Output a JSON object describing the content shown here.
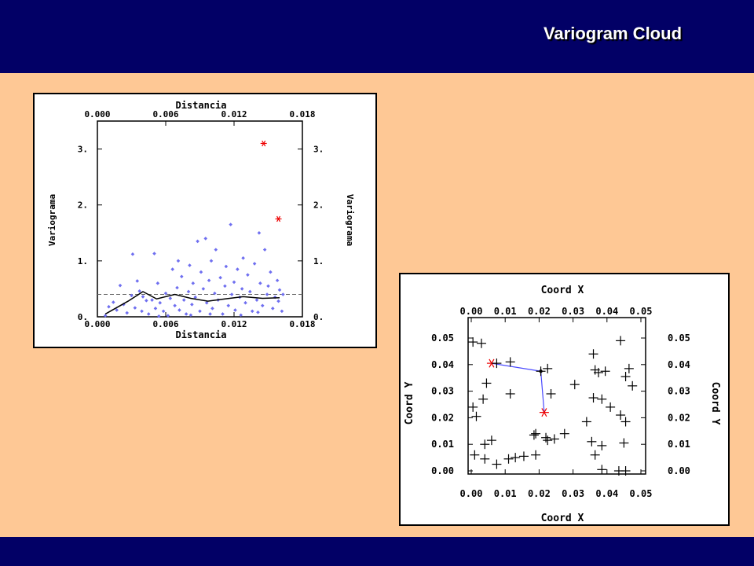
{
  "slide": {
    "title": "Variogram Cloud",
    "colors": {
      "background": "#fec895",
      "band": "#020066",
      "title_text": "#ffffff"
    }
  },
  "chart_data": [
    {
      "type": "scatter",
      "xlabel_top": "Distancia",
      "xlabel_bottom": "Distancia",
      "ylabel_left": "Variograma",
      "ylabel_right": "Variograma",
      "xlim": [
        0,
        0.018
      ],
      "ylim": [
        0,
        3.5
      ],
      "x_ticks": [
        0,
        0.006,
        0.012,
        0.018
      ],
      "x_tick_labels": [
        "0.000",
        "0.006",
        "0.012",
        "0.018"
      ],
      "y_ticks": [
        0,
        1,
        2,
        3
      ],
      "y_tick_labels": [
        "0.",
        "1.",
        "2.",
        "3."
      ],
      "sill": 0.4,
      "colors": {
        "points": "#6f6ff0",
        "outliers": "#ee0000",
        "line": "#000000",
        "sill": "#666666"
      },
      "points": [
        [
          0.0007,
          0.02
        ],
        [
          0.001,
          0.18
        ],
        [
          0.0014,
          0.26
        ],
        [
          0.0017,
          0.12
        ],
        [
          0.002,
          0.56
        ],
        [
          0.0023,
          0.22
        ],
        [
          0.0026,
          0.07
        ],
        [
          0.003,
          0.38
        ],
        [
          0.0031,
          1.12
        ],
        [
          0.0033,
          0.16
        ],
        [
          0.0035,
          0.64
        ],
        [
          0.0037,
          0.46
        ],
        [
          0.004,
          0.36
        ],
        [
          0.0043,
          0.29
        ],
        [
          0.0045,
          0.05
        ],
        [
          0.0048,
          0.3
        ],
        [
          0.005,
          1.13
        ],
        [
          0.0051,
          0.15
        ],
        [
          0.0053,
          0.6
        ],
        [
          0.0055,
          0.25
        ],
        [
          0.0058,
          0.1
        ],
        [
          0.006,
          0.42
        ],
        [
          0.0062,
          0.02
        ],
        [
          0.0064,
          0.33
        ],
        [
          0.0066,
          0.85
        ],
        [
          0.0068,
          0.2
        ],
        [
          0.007,
          0.52
        ],
        [
          0.0071,
          1.0
        ],
        [
          0.0072,
          0.12
        ],
        [
          0.0074,
          0.72
        ],
        [
          0.0076,
          0.3
        ],
        [
          0.0078,
          0.05
        ],
        [
          0.008,
          0.45
        ],
        [
          0.0081,
          0.92
        ],
        [
          0.0083,
          0.22
        ],
        [
          0.0084,
          0.6
        ],
        [
          0.0086,
          0.35
        ],
        [
          0.0088,
          1.35
        ],
        [
          0.009,
          0.1
        ],
        [
          0.0091,
          0.8
        ],
        [
          0.0093,
          0.5
        ],
        [
          0.0095,
          1.4
        ],
        [
          0.0096,
          0.25
        ],
        [
          0.0098,
          0.65
        ],
        [
          0.01,
          1.0
        ],
        [
          0.0101,
          0.15
        ],
        [
          0.0103,
          0.42
        ],
        [
          0.0104,
          1.2
        ],
        [
          0.0106,
          0.3
        ],
        [
          0.0108,
          0.7
        ],
        [
          0.011,
          0.05
        ],
        [
          0.0112,
          0.55
        ],
        [
          0.0113,
          0.9
        ],
        [
          0.0115,
          0.2
        ],
        [
          0.0117,
          1.65
        ],
        [
          0.0118,
          0.4
        ],
        [
          0.012,
          0.62
        ],
        [
          0.0121,
          0.12
        ],
        [
          0.0123,
          0.85
        ],
        [
          0.0125,
          0.35
        ],
        [
          0.0127,
          0.5
        ],
        [
          0.0128,
          1.05
        ],
        [
          0.013,
          0.25
        ],
        [
          0.0132,
          0.75
        ],
        [
          0.0134,
          0.45
        ],
        [
          0.0136,
          0.1
        ],
        [
          0.0138,
          0.95
        ],
        [
          0.014,
          0.3
        ],
        [
          0.0142,
          1.5
        ],
        [
          0.0143,
          0.6
        ],
        [
          0.0145,
          0.2
        ],
        [
          0.0147,
          1.2
        ],
        [
          0.0149,
          0.4
        ],
        [
          0.015,
          0.55
        ],
        [
          0.0152,
          0.8
        ],
        [
          0.0154,
          0.15
        ],
        [
          0.0156,
          0.35
        ],
        [
          0.0158,
          0.65
        ],
        [
          0.0159,
          0.28
        ],
        [
          0.016,
          0.48
        ],
        [
          0.0162,
          0.1
        ],
        [
          0.0163,
          0.4
        ],
        [
          0.0054,
          0.01
        ],
        [
          0.0082,
          0.03
        ],
        [
          0.0099,
          0.05
        ],
        [
          0.0126,
          0.03
        ],
        [
          0.0141,
          0.08
        ],
        [
          0.0039,
          0.1
        ]
      ],
      "outliers": [
        [
          0.0146,
          3.1
        ],
        [
          0.0159,
          1.75
        ]
      ],
      "mean_line": [
        [
          0.0007,
          0.05
        ],
        [
          0.0027,
          0.28
        ],
        [
          0.004,
          0.45
        ],
        [
          0.0052,
          0.32
        ],
        [
          0.0068,
          0.4
        ],
        [
          0.0082,
          0.33
        ],
        [
          0.0097,
          0.28
        ],
        [
          0.0112,
          0.32
        ],
        [
          0.0128,
          0.36
        ],
        [
          0.0145,
          0.33
        ],
        [
          0.016,
          0.34
        ]
      ]
    },
    {
      "type": "scatter",
      "xlabel_top": "Coord X",
      "xlabel_bottom": "Coord X",
      "ylabel_left": "Coord Y",
      "ylabel_right": "Coord Y",
      "xlim": [
        0,
        0.05
      ],
      "ylim": [
        0,
        0.05
      ],
      "x_ticks": [
        0,
        0.01,
        0.02,
        0.03,
        0.04,
        0.05
      ],
      "x_tick_labels": [
        "0.00",
        "0.01",
        "0.02",
        "0.03",
        "0.04",
        "0.05"
      ],
      "y_ticks": [
        0,
        0.01,
        0.02,
        0.03,
        0.04,
        0.05
      ],
      "y_tick_labels": [
        "0.00",
        "0.01",
        "0.02",
        "0.03",
        "0.04",
        "0.05"
      ],
      "colors": {
        "points": "#000000",
        "pair_marker": "#ee0000",
        "pair_line": "#4a4aff"
      },
      "points": [
        [
          0.0005,
          0.0485
        ],
        [
          0.003,
          0.048
        ],
        [
          0.0075,
          0.0405
        ],
        [
          0.0115,
          0.041
        ],
        [
          0.0225,
          0.0385
        ],
        [
          0.0205,
          0.0375
        ],
        [
          0.0045,
          0.033
        ],
        [
          0.0035,
          0.027
        ],
        [
          0.0115,
          0.029
        ],
        [
          0.0235,
          0.029
        ],
        [
          0.0005,
          0.024
        ],
        [
          0.0015,
          0.0205
        ],
        [
          0.004,
          0.01
        ],
        [
          0.006,
          0.0115
        ],
        [
          0.0185,
          0.0135
        ],
        [
          0.0225,
          0.0115
        ],
        [
          0.019,
          0.014
        ],
        [
          0.0245,
          0.012
        ],
        [
          0.001,
          0.006
        ],
        [
          0.004,
          0.0045
        ],
        [
          0.0075,
          0.0025
        ],
        [
          0.011,
          0.0045
        ],
        [
          0.013,
          0.005
        ],
        [
          0.0155,
          0.0055
        ],
        [
          0.019,
          0.006
        ],
        [
          0.0305,
          0.0325
        ],
        [
          0.036,
          0.044
        ],
        [
          0.0365,
          0.038
        ],
        [
          0.0375,
          0.037
        ],
        [
          0.0395,
          0.0375
        ],
        [
          0.044,
          0.049
        ],
        [
          0.0465,
          0.0385
        ],
        [
          0.0455,
          0.0355
        ],
        [
          0.0475,
          0.032
        ],
        [
          0.036,
          0.0275
        ],
        [
          0.0385,
          0.027
        ],
        [
          0.041,
          0.024
        ],
        [
          0.044,
          0.021
        ],
        [
          0.0455,
          0.0185
        ],
        [
          0.034,
          0.0185
        ],
        [
          0.0355,
          0.011
        ],
        [
          0.0385,
          0.0095
        ],
        [
          0.045,
          0.0105
        ],
        [
          0.0365,
          0.006
        ],
        [
          0.0385,
          0.0005
        ],
        [
          0.0435,
          0.0
        ],
        [
          0.0455,
          0.0
        ],
        [
          0.0275,
          0.014
        ],
        [
          0.022,
          0.0125
        ]
      ],
      "pair": {
        "center": [
          0.0205,
          0.0375
        ],
        "ends": [
          [
            0.006,
            0.0405
          ],
          [
            0.0215,
            0.022
          ]
        ]
      }
    }
  ]
}
